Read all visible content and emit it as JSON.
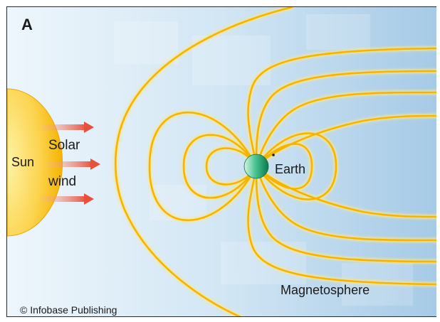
{
  "panel_label": "A",
  "labels": {
    "sun": "Sun",
    "solar": "Solar",
    "wind": "wind",
    "earth": "Earth",
    "magnetosphere": "Magnetosphere"
  },
  "credit": "© Infobase Publishing",
  "colors": {
    "field_lines": "#f4b400",
    "field_glow": "#fde68a",
    "sun": "#fbbf24",
    "wind_arrows": "#e8503a",
    "earth": "#10b981",
    "space_light": "#e8f3fb",
    "space_dark": "#9cc4e2"
  }
}
